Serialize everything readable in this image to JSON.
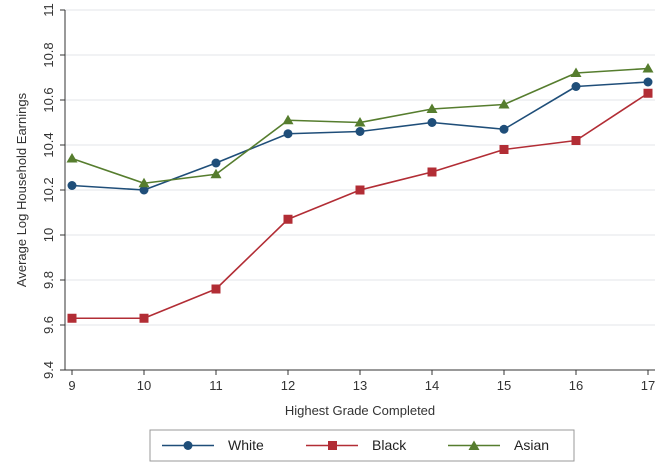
{
  "chart_data": {
    "type": "line",
    "xlabel": "Highest Grade Completed",
    "ylabel": "Average Log Household Earnings",
    "x": [
      9,
      10,
      11,
      12,
      13,
      14,
      15,
      16,
      17
    ],
    "xlim": [
      9,
      17
    ],
    "ylim": [
      9.4,
      11
    ],
    "yticks": [
      9.4,
      9.6,
      9.8,
      10,
      10.2,
      10.4,
      10.6,
      10.8,
      11
    ],
    "ytick_labels": [
      "9.4",
      "9.6",
      "9.8",
      "10",
      "10.2",
      "10.4",
      "10.6",
      "10.8",
      "11"
    ],
    "xtick_labels": [
      "9",
      "10",
      "11",
      "12",
      "13",
      "14",
      "15",
      "16",
      "17"
    ],
    "grid": true,
    "legend_position": "bottom",
    "series": [
      {
        "name": "White",
        "color": "#1f4e79",
        "marker": "circle",
        "values": [
          10.22,
          10.2,
          10.32,
          10.45,
          10.46,
          10.5,
          10.47,
          10.66,
          10.68
        ]
      },
      {
        "name": "Black",
        "color": "#b22d35",
        "marker": "square",
        "values": [
          9.63,
          9.63,
          9.76,
          10.07,
          10.2,
          10.28,
          10.38,
          10.42,
          10.63
        ]
      },
      {
        "name": "Asian",
        "color": "#567d2e",
        "marker": "triangle",
        "values": [
          10.34,
          10.23,
          10.27,
          10.51,
          10.5,
          10.56,
          10.58,
          10.72,
          10.74
        ]
      }
    ]
  }
}
